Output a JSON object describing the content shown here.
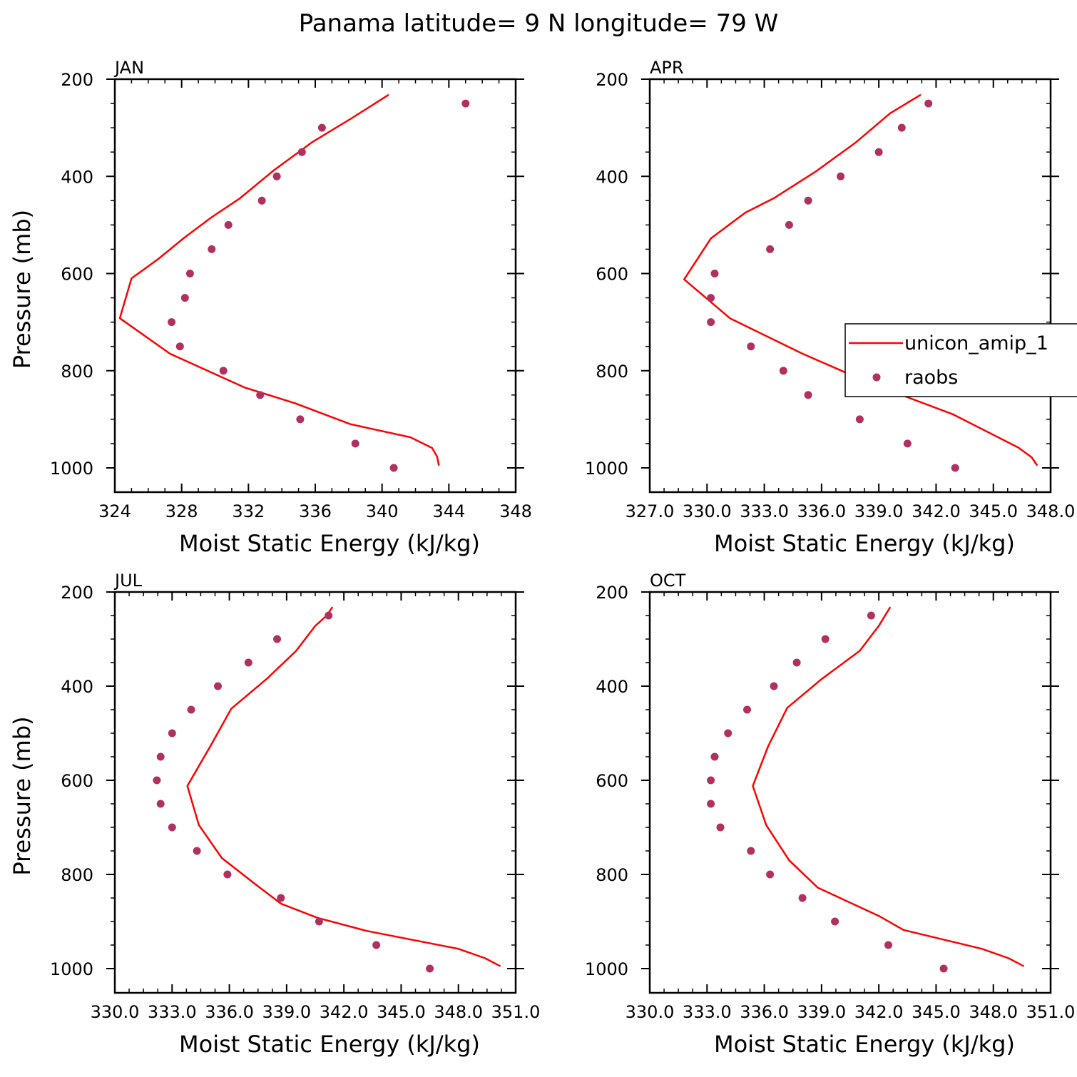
{
  "figure": {
    "title": "Panama  latitude= 9 N longitude= 79 W"
  },
  "colors": {
    "model": "#ff0000",
    "obs": "#b03060",
    "axes": "#000000"
  },
  "legend": {
    "entries": [
      "unicon_amip_1",
      "raobs"
    ],
    "placement": "right, overlapping APR panel"
  },
  "chart_data": [
    {
      "type": "line",
      "title": "JAN",
      "xlabel": "Moist Static Energy (kJ/kg)",
      "ylabel": "Pressure (mb)",
      "xlim": [
        324,
        348
      ],
      "ylim": [
        1000,
        200
      ],
      "y_inverted": true,
      "xticks": [
        324,
        328,
        332,
        336,
        340,
        344,
        348
      ],
      "xtick_labels": [
        "324",
        "328",
        "332",
        "336",
        "340",
        "344",
        "348"
      ],
      "yticks": [
        200,
        400,
        600,
        800,
        1000
      ],
      "ytick_labels": [
        "200",
        "400",
        "600",
        "800",
        "1000"
      ],
      "series": [
        {
          "name": "unicon_amip_1",
          "style": "line",
          "x": [
            340.4,
            338.2,
            335.8,
            333.5,
            331.5,
            329.8,
            328.1,
            326.6,
            325.0,
            324.3,
            327.3,
            331.8,
            334.8,
            338.1,
            341.7,
            343.0,
            343.3,
            343.4
          ],
          "y": [
            232,
            280,
            330,
            388,
            445,
            484,
            528,
            570,
            610,
            692,
            765,
            835,
            867,
            910,
            937,
            959,
            977,
            995
          ]
        },
        {
          "name": "raobs",
          "style": "points",
          "x": [
            345.0,
            336.4,
            335.2,
            333.7,
            332.8,
            330.8,
            329.8,
            328.5,
            328.2,
            327.4,
            327.9,
            330.5,
            332.7,
            335.1,
            338.4,
            340.7
          ],
          "y": [
            250,
            300,
            350,
            400,
            450,
            500,
            550,
            600,
            650,
            700,
            750,
            800,
            850,
            900,
            950,
            1000
          ]
        }
      ]
    },
    {
      "type": "line",
      "title": "APR",
      "xlabel": "Moist Static Energy (kJ/kg)",
      "ylabel": "",
      "xlim": [
        327,
        348
      ],
      "ylim": [
        1000,
        200
      ],
      "y_inverted": true,
      "xticks": [
        327,
        330,
        333,
        336,
        339,
        342,
        345,
        348
      ],
      "xtick_labels": [
        "327.0",
        "330.0",
        "333.0",
        "336.0",
        "339.0",
        "342.0",
        "345.0",
        "348.0"
      ],
      "yticks": [
        200,
        400,
        600,
        800,
        1000
      ],
      "ytick_labels": [
        "200",
        "400",
        "600",
        "800",
        "1000"
      ],
      "series": [
        {
          "name": "unicon_amip_1",
          "style": "line",
          "x": [
            341.2,
            339.6,
            337.8,
            335.7,
            333.5,
            332.0,
            330.2,
            328.8,
            331.2,
            335.0,
            338.5,
            342.9,
            346.3,
            347.0,
            347.3
          ],
          "y": [
            232,
            270,
            330,
            390,
            445,
            475,
            528,
            612,
            692,
            765,
            825,
            890,
            958,
            978,
            995
          ]
        },
        {
          "name": "raobs",
          "style": "points",
          "x": [
            341.6,
            340.2,
            339.0,
            337.0,
            335.3,
            334.3,
            333.3,
            330.4,
            330.2,
            330.2,
            332.3,
            334.0,
            335.3,
            338.0,
            340.5,
            343.0
          ],
          "y": [
            250,
            300,
            350,
            400,
            450,
            500,
            550,
            600,
            650,
            700,
            750,
            800,
            850,
            900,
            950,
            1000
          ]
        }
      ]
    },
    {
      "type": "line",
      "title": "JUL",
      "xlabel": "Moist Static Energy (kJ/kg)",
      "ylabel": "Pressure (mb)",
      "xlim": [
        330,
        351
      ],
      "ylim": [
        1000,
        200
      ],
      "y_inverted": true,
      "xticks": [
        330,
        333,
        336,
        339,
        342,
        345,
        348,
        351
      ],
      "xtick_labels": [
        "330.0",
        "333.0",
        "336.0",
        "339.0",
        "342.0",
        "345.0",
        "348.0",
        "351.0"
      ],
      "yticks": [
        200,
        400,
        600,
        800,
        1000
      ],
      "ytick_labels": [
        "200",
        "400",
        "600",
        "800",
        "1000"
      ],
      "series": [
        {
          "name": "unicon_amip_1",
          "style": "line",
          "x": [
            341.4,
            341.1,
            340.5,
            339.5,
            338.0,
            336.1,
            335.0,
            333.8,
            334.4,
            335.6,
            337.4,
            338.7,
            340.6,
            343.2,
            348.0,
            349.4,
            350.2
          ],
          "y": [
            232,
            250,
            272,
            325,
            383,
            448,
            528,
            612,
            695,
            765,
            822,
            862,
            892,
            920,
            958,
            978,
            995
          ]
        },
        {
          "name": "raobs",
          "style": "points",
          "x": [
            341.2,
            338.5,
            337.0,
            335.4,
            334.0,
            333.0,
            332.4,
            332.2,
            332.4,
            333.0,
            334.3,
            335.9,
            338.7,
            340.7,
            343.7,
            346.5
          ],
          "y": [
            250,
            300,
            350,
            400,
            450,
            500,
            550,
            600,
            650,
            700,
            750,
            800,
            850,
            900,
            950,
            1000
          ]
        }
      ]
    },
    {
      "type": "line",
      "title": "OCT",
      "xlabel": "Moist Static Energy (kJ/kg)",
      "ylabel": "",
      "xlim": [
        330,
        351
      ],
      "ylim": [
        1000,
        200
      ],
      "y_inverted": true,
      "xticks": [
        330,
        333,
        336,
        339,
        342,
        345,
        348,
        351
      ],
      "xtick_labels": [
        "330.0",
        "333.0",
        "336.0",
        "339.0",
        "342.0",
        "345.0",
        "348.0",
        "351.0"
      ],
      "yticks": [
        200,
        400,
        600,
        800,
        1000
      ],
      "ytick_labels": [
        "200",
        "400",
        "600",
        "800",
        "1000"
      ],
      "series": [
        {
          "name": "unicon_amip_1",
          "style": "line",
          "x": [
            342.6,
            342.0,
            341.0,
            339.0,
            337.2,
            336.2,
            335.4,
            336.1,
            337.3,
            338.8,
            340.6,
            342.0,
            343.3,
            347.4,
            348.8,
            349.6
          ],
          "y": [
            232,
            272,
            325,
            385,
            446,
            528,
            612,
            695,
            770,
            828,
            862,
            888,
            918,
            958,
            978,
            995
          ]
        },
        {
          "name": "raobs",
          "style": "points",
          "x": [
            341.6,
            339.2,
            337.7,
            336.5,
            335.1,
            334.1,
            333.4,
            333.2,
            333.2,
            333.7,
            335.3,
            336.3,
            338.0,
            339.7,
            342.5,
            345.4
          ],
          "y": [
            250,
            300,
            350,
            400,
            450,
            500,
            550,
            600,
            650,
            700,
            750,
            800,
            850,
            900,
            950,
            1000
          ]
        }
      ]
    }
  ]
}
